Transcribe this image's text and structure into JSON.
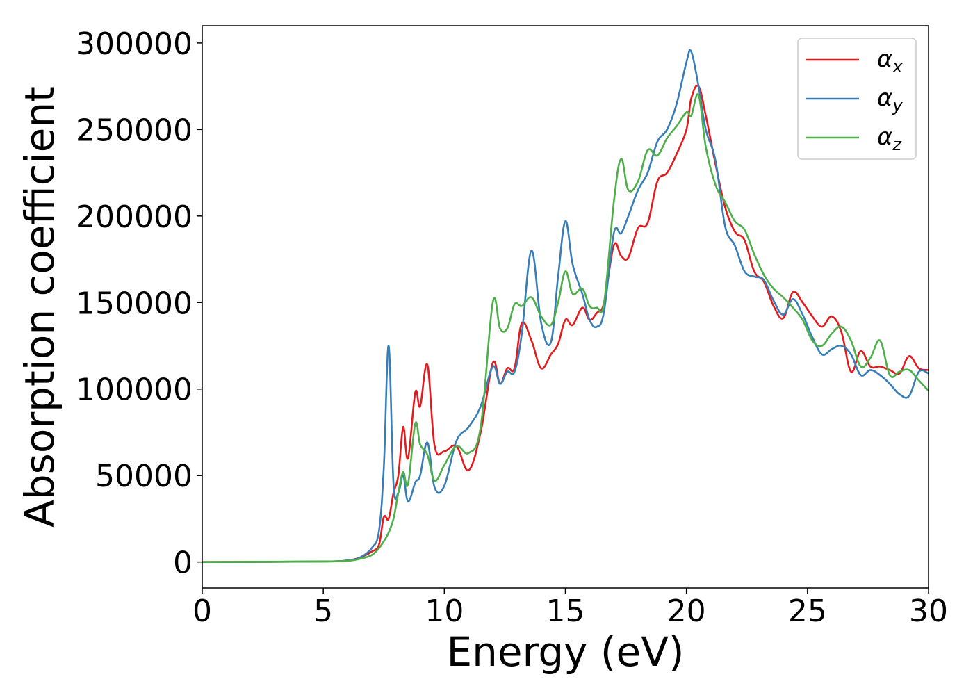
{
  "chart_data": {
    "type": "line",
    "xlabel": "Energy (eV)",
    "ylabel": "Absorption coefficient",
    "xlim": [
      0,
      30
    ],
    "ylim": [
      -15000,
      310000
    ],
    "xticks": [
      0,
      5,
      10,
      15,
      20,
      25,
      30
    ],
    "yticks": [
      0,
      50000,
      100000,
      150000,
      200000,
      250000,
      300000
    ],
    "grid": false,
    "legend_position": "top-right",
    "x": [
      0,
      5,
      6,
      6.5,
      7,
      7.3,
      7.5,
      7.7,
      7.9,
      8.1,
      8.3,
      8.5,
      8.8,
      9.0,
      9.3,
      9.6,
      10.0,
      10.5,
      11.0,
      11.5,
      12.0,
      12.3,
      12.6,
      12.9,
      13.2,
      13.6,
      14.0,
      14.4,
      14.7,
      15.0,
      15.3,
      15.7,
      16.0,
      16.3,
      16.6,
      17.0,
      17.3,
      17.6,
      18.0,
      18.4,
      18.8,
      19.2,
      19.6,
      20.0,
      20.2,
      20.5,
      20.8,
      21.2,
      21.6,
      22.0,
      22.4,
      22.8,
      23.2,
      23.6,
      24.0,
      24.4,
      24.8,
      25.2,
      25.6,
      26.0,
      26.4,
      26.8,
      27.2,
      27.6,
      28.0,
      28.4,
      28.8,
      29.2,
      29.6,
      30.0
    ],
    "series": [
      {
        "name": "α_x",
        "color": "#e41a1c",
        "values": [
          0,
          300,
          1000,
          2500,
          6000,
          10000,
          26000,
          25000,
          40000,
          50000,
          78000,
          60000,
          98000,
          90000,
          114000,
          67000,
          64000,
          67000,
          53000,
          75000,
          115000,
          103000,
          112000,
          112000,
          138000,
          128000,
          112000,
          120000,
          126000,
          140000,
          137000,
          147000,
          140000,
          144000,
          150000,
          183000,
          177000,
          176000,
          193000,
          196000,
          220000,
          225000,
          236000,
          250000,
          268000,
          275000,
          258000,
          230000,
          205000,
          191000,
          186000,
          168000,
          162000,
          148000,
          141000,
          156000,
          150000,
          142000,
          136000,
          142000,
          133000,
          110000,
          122000,
          113000,
          113000,
          111000,
          109000,
          119000,
          112000,
          111000
        ]
      },
      {
        "name": "α_y",
        "color": "#377eb8",
        "values": [
          0,
          300,
          1000,
          2500,
          8000,
          18000,
          55000,
          125000,
          45000,
          40000,
          50000,
          35000,
          46000,
          50000,
          69000,
          43000,
          44000,
          70000,
          78000,
          90000,
          113000,
          103000,
          110000,
          110000,
          132000,
          180000,
          138000,
          127000,
          165000,
          197000,
          172000,
          155000,
          140000,
          136000,
          145000,
          190000,
          190000,
          200000,
          215000,
          225000,
          243000,
          250000,
          265000,
          289000,
          295000,
          275000,
          250000,
          232000,
          194000,
          183000,
          168000,
          165000,
          163000,
          151000,
          143000,
          152000,
          143000,
          130000,
          120000,
          123000,
          125000,
          120000,
          108000,
          111000,
          108000,
          103000,
          97000,
          96000,
          110000,
          109000
        ]
      },
      {
        "name": "α_z",
        "color": "#4daf4a",
        "values": [
          0,
          300,
          700,
          1800,
          4000,
          8000,
          12000,
          17000,
          25000,
          40000,
          52000,
          45000,
          80000,
          68000,
          62000,
          47000,
          56000,
          67000,
          63000,
          78000,
          150000,
          135000,
          135000,
          149000,
          148000,
          153000,
          142000,
          137000,
          150000,
          168000,
          155000,
          158000,
          148000,
          147000,
          150000,
          208000,
          233000,
          215000,
          220000,
          238000,
          235000,
          245000,
          252000,
          260000,
          258000,
          270000,
          240000,
          218000,
          208000,
          197000,
          192000,
          178000,
          166000,
          158000,
          153000,
          147000,
          140000,
          128000,
          125000,
          132000,
          136000,
          128000,
          113000,
          118000,
          128000,
          108000,
          110000,
          111000,
          105000,
          99000
        ]
      }
    ]
  }
}
